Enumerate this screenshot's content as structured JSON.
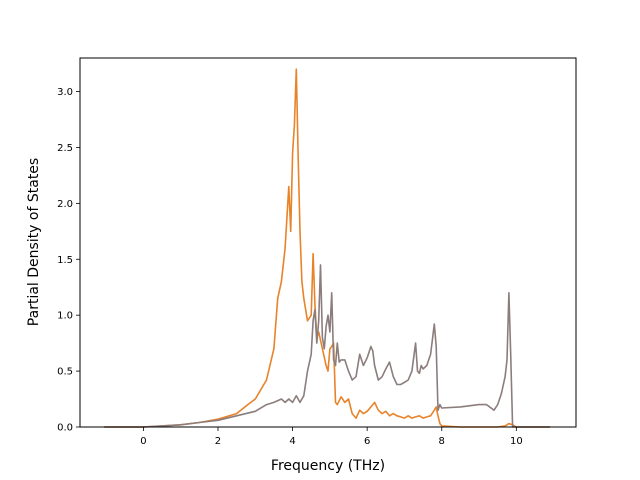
{
  "chart_data": {
    "type": "line",
    "title": "",
    "xlabel": "Frequency (THz)",
    "ylabel": "Partial Density of States",
    "xlim": [
      -1.7,
      11.6
    ],
    "ylim": [
      0.0,
      3.3
    ],
    "xticks": [
      0,
      2,
      4,
      6,
      8,
      10
    ],
    "xtick_labels": [
      "0",
      "2",
      "4",
      "6",
      "8",
      "10"
    ],
    "yticks": [
      0.0,
      0.5,
      1.0,
      1.5,
      2.0,
      2.5,
      3.0
    ],
    "ytick_labels": [
      "0.0",
      "0.5",
      "1.0",
      "1.5",
      "2.0",
      "2.5",
      "3.0"
    ],
    "grid": false,
    "legend": "none",
    "series": [
      {
        "color": "#e8832a",
        "x": [
          -1.05,
          0.0,
          0.5,
          1.0,
          1.5,
          2.0,
          2.5,
          2.8,
          3.0,
          3.3,
          3.5,
          3.6,
          3.7,
          3.8,
          3.9,
          3.95,
          4.0,
          4.05,
          4.1,
          4.15,
          4.2,
          4.25,
          4.3,
          4.4,
          4.5,
          4.55,
          4.6,
          4.65,
          4.7,
          4.8,
          4.9,
          4.95,
          5.0,
          5.05,
          5.1,
          5.15,
          5.2,
          5.3,
          5.4,
          5.5,
          5.6,
          5.7,
          5.8,
          5.9,
          6.0,
          6.1,
          6.2,
          6.3,
          6.4,
          6.5,
          6.6,
          6.7,
          6.8,
          6.9,
          7.0,
          7.1,
          7.2,
          7.3,
          7.4,
          7.5,
          7.6,
          7.7,
          7.8,
          7.85,
          7.9,
          7.95,
          8.0,
          8.5,
          9.0,
          9.5,
          9.7,
          9.8,
          9.9,
          10.0,
          10.9
        ],
        "y": [
          0.0,
          0.0,
          0.01,
          0.02,
          0.04,
          0.07,
          0.12,
          0.2,
          0.25,
          0.42,
          0.7,
          1.15,
          1.3,
          1.6,
          2.15,
          1.75,
          2.45,
          2.7,
          3.2,
          2.4,
          1.75,
          1.3,
          1.15,
          0.95,
          1.0,
          1.55,
          1.1,
          0.8,
          0.85,
          0.7,
          0.55,
          0.5,
          0.7,
          0.72,
          0.75,
          0.22,
          0.2,
          0.27,
          0.22,
          0.25,
          0.12,
          0.08,
          0.15,
          0.12,
          0.14,
          0.18,
          0.22,
          0.15,
          0.12,
          0.14,
          0.1,
          0.12,
          0.1,
          0.09,
          0.08,
          0.1,
          0.08,
          0.09,
          0.1,
          0.08,
          0.09,
          0.1,
          0.15,
          0.18,
          0.1,
          0.03,
          0.01,
          0.0,
          0.0,
          0.0,
          0.01,
          0.03,
          0.02,
          0.0,
          0.0
        ]
      },
      {
        "color": "#8c7d7d",
        "x": [
          -1.05,
          0.0,
          0.5,
          1.0,
          1.5,
          2.0,
          2.5,
          3.0,
          3.3,
          3.5,
          3.7,
          3.8,
          3.9,
          4.0,
          4.1,
          4.2,
          4.3,
          4.4,
          4.5,
          4.55,
          4.6,
          4.65,
          4.7,
          4.75,
          4.8,
          4.85,
          4.9,
          4.95,
          5.0,
          5.05,
          5.1,
          5.15,
          5.2,
          5.25,
          5.3,
          5.4,
          5.5,
          5.6,
          5.7,
          5.8,
          5.9,
          6.0,
          6.1,
          6.15,
          6.2,
          6.3,
          6.4,
          6.5,
          6.6,
          6.7,
          6.8,
          6.9,
          7.0,
          7.1,
          7.2,
          7.3,
          7.35,
          7.4,
          7.45,
          7.5,
          7.6,
          7.7,
          7.8,
          7.85,
          7.9,
          7.95,
          8.0,
          8.5,
          9.0,
          9.2,
          9.4,
          9.5,
          9.6,
          9.7,
          9.75,
          9.8,
          9.85,
          9.9,
          10.9
        ],
        "y": [
          0.0,
          0.0,
          0.01,
          0.02,
          0.04,
          0.06,
          0.1,
          0.14,
          0.2,
          0.22,
          0.25,
          0.22,
          0.25,
          0.22,
          0.28,
          0.22,
          0.28,
          0.5,
          0.65,
          0.95,
          1.05,
          0.75,
          0.95,
          1.45,
          0.8,
          0.7,
          0.9,
          1.0,
          0.85,
          1.2,
          0.6,
          0.55,
          0.75,
          0.58,
          0.6,
          0.6,
          0.5,
          0.42,
          0.45,
          0.65,
          0.55,
          0.62,
          0.72,
          0.68,
          0.55,
          0.42,
          0.45,
          0.52,
          0.58,
          0.45,
          0.38,
          0.38,
          0.4,
          0.42,
          0.5,
          0.75,
          0.5,
          0.48,
          0.55,
          0.52,
          0.55,
          0.65,
          0.92,
          0.72,
          0.15,
          0.2,
          0.17,
          0.18,
          0.2,
          0.2,
          0.15,
          0.2,
          0.3,
          0.45,
          0.6,
          1.2,
          0.65,
          0.0,
          0.0
        ]
      }
    ]
  }
}
